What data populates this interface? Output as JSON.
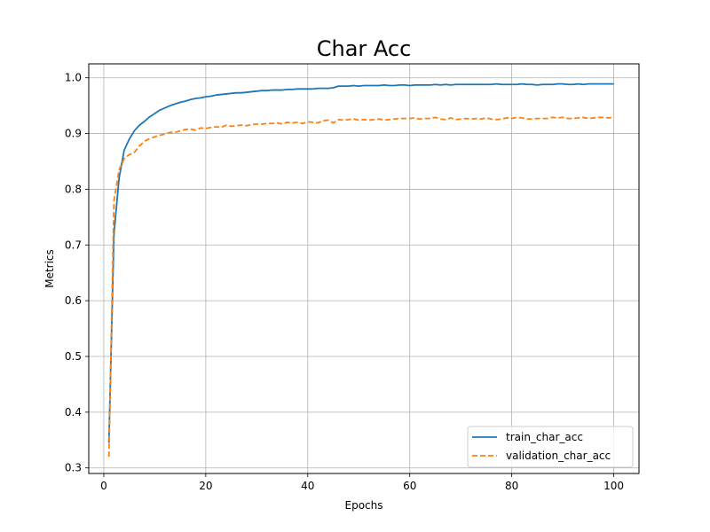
{
  "chart_data": {
    "type": "line",
    "title": "Char Acc",
    "xlabel": "Epochs",
    "ylabel": "Metrics",
    "xlim": [
      -2.95,
      104.95
    ],
    "ylim": [
      0.29,
      1.025
    ],
    "xticks": [
      0,
      20,
      40,
      60,
      80,
      100
    ],
    "yticks": [
      0.3,
      0.4,
      0.5,
      0.6,
      0.7,
      0.8,
      0.9,
      1.0
    ],
    "xtick_labels": [
      "0",
      "20",
      "40",
      "60",
      "80",
      "100"
    ],
    "ytick_labels": [
      "0.3",
      "0.4",
      "0.5",
      "0.6",
      "0.7",
      "0.8",
      "0.9",
      "1.0"
    ],
    "grid": true,
    "legend_position": "lower-right",
    "series": [
      {
        "name": "train_char_acc",
        "color": "#1f77b4",
        "style": "solid",
        "x": [
          1,
          2,
          3,
          4,
          5,
          6,
          7,
          8,
          9,
          10,
          11,
          12,
          13,
          14,
          15,
          16,
          17,
          18,
          19,
          20,
          21,
          22,
          23,
          24,
          25,
          26,
          27,
          28,
          29,
          30,
          31,
          32,
          33,
          34,
          35,
          36,
          37,
          38,
          39,
          40,
          41,
          42,
          43,
          44,
          45,
          46,
          47,
          48,
          49,
          50,
          51,
          52,
          53,
          54,
          55,
          56,
          57,
          58,
          59,
          60,
          61,
          62,
          63,
          64,
          65,
          66,
          67,
          68,
          69,
          70,
          71,
          72,
          73,
          74,
          75,
          76,
          77,
          78,
          79,
          80,
          81,
          82,
          83,
          84,
          85,
          86,
          87,
          88,
          89,
          90,
          91,
          92,
          93,
          94,
          95,
          96,
          97,
          98,
          99,
          100
        ],
        "y": [
          0.345,
          0.72,
          0.82,
          0.87,
          0.89,
          0.905,
          0.915,
          0.922,
          0.93,
          0.936,
          0.942,
          0.946,
          0.95,
          0.953,
          0.956,
          0.958,
          0.961,
          0.963,
          0.964,
          0.966,
          0.967,
          0.969,
          0.97,
          0.971,
          0.972,
          0.973,
          0.973,
          0.974,
          0.975,
          0.976,
          0.977,
          0.977,
          0.978,
          0.978,
          0.978,
          0.979,
          0.979,
          0.98,
          0.98,
          0.98,
          0.98,
          0.981,
          0.981,
          0.981,
          0.982,
          0.985,
          0.985,
          0.985,
          0.986,
          0.985,
          0.986,
          0.986,
          0.986,
          0.986,
          0.987,
          0.986,
          0.986,
          0.987,
          0.987,
          0.986,
          0.987,
          0.987,
          0.987,
          0.987,
          0.988,
          0.987,
          0.988,
          0.987,
          0.988,
          0.988,
          0.988,
          0.988,
          0.988,
          0.988,
          0.988,
          0.988,
          0.989,
          0.988,
          0.988,
          0.988,
          0.988,
          0.989,
          0.988,
          0.988,
          0.987,
          0.988,
          0.988,
          0.988,
          0.989,
          0.989,
          0.988,
          0.988,
          0.989,
          0.988,
          0.989,
          0.989,
          0.989,
          0.989,
          0.989,
          0.989
        ]
      },
      {
        "name": "validation_char_acc",
        "color": "#ff7f0e",
        "style": "dashed",
        "x": [
          1,
          2,
          3,
          4,
          5,
          6,
          7,
          8,
          9,
          10,
          11,
          12,
          13,
          14,
          15,
          16,
          17,
          18,
          19,
          20,
          21,
          22,
          23,
          24,
          25,
          26,
          27,
          28,
          29,
          30,
          31,
          32,
          33,
          34,
          35,
          36,
          37,
          38,
          39,
          40,
          41,
          42,
          43,
          44,
          45,
          46,
          47,
          48,
          49,
          50,
          51,
          52,
          53,
          54,
          55,
          56,
          57,
          58,
          59,
          60,
          61,
          62,
          63,
          64,
          65,
          66,
          67,
          68,
          69,
          70,
          71,
          72,
          73,
          74,
          75,
          76,
          77,
          78,
          79,
          80,
          81,
          82,
          83,
          84,
          85,
          86,
          87,
          88,
          89,
          90,
          91,
          92,
          93,
          94,
          95,
          96,
          97,
          98,
          99,
          100
        ],
        "y": [
          0.32,
          0.78,
          0.835,
          0.855,
          0.862,
          0.866,
          0.878,
          0.886,
          0.891,
          0.894,
          0.897,
          0.899,
          0.902,
          0.902,
          0.905,
          0.907,
          0.908,
          0.906,
          0.91,
          0.909,
          0.911,
          0.912,
          0.911,
          0.915,
          0.913,
          0.914,
          0.915,
          0.914,
          0.916,
          0.917,
          0.917,
          0.918,
          0.918,
          0.919,
          0.917,
          0.92,
          0.919,
          0.92,
          0.918,
          0.921,
          0.92,
          0.919,
          0.923,
          0.924,
          0.919,
          0.925,
          0.924,
          0.925,
          0.926,
          0.924,
          0.925,
          0.924,
          0.925,
          0.926,
          0.924,
          0.925,
          0.926,
          0.927,
          0.927,
          0.927,
          0.928,
          0.926,
          0.927,
          0.927,
          0.929,
          0.926,
          0.925,
          0.928,
          0.925,
          0.926,
          0.927,
          0.926,
          0.927,
          0.926,
          0.928,
          0.926,
          0.925,
          0.926,
          0.928,
          0.927,
          0.929,
          0.928,
          0.926,
          0.926,
          0.927,
          0.927,
          0.927,
          0.929,
          0.928,
          0.929,
          0.927,
          0.927,
          0.928,
          0.929,
          0.927,
          0.928,
          0.929,
          0.929,
          0.928,
          0.929
        ]
      }
    ]
  }
}
